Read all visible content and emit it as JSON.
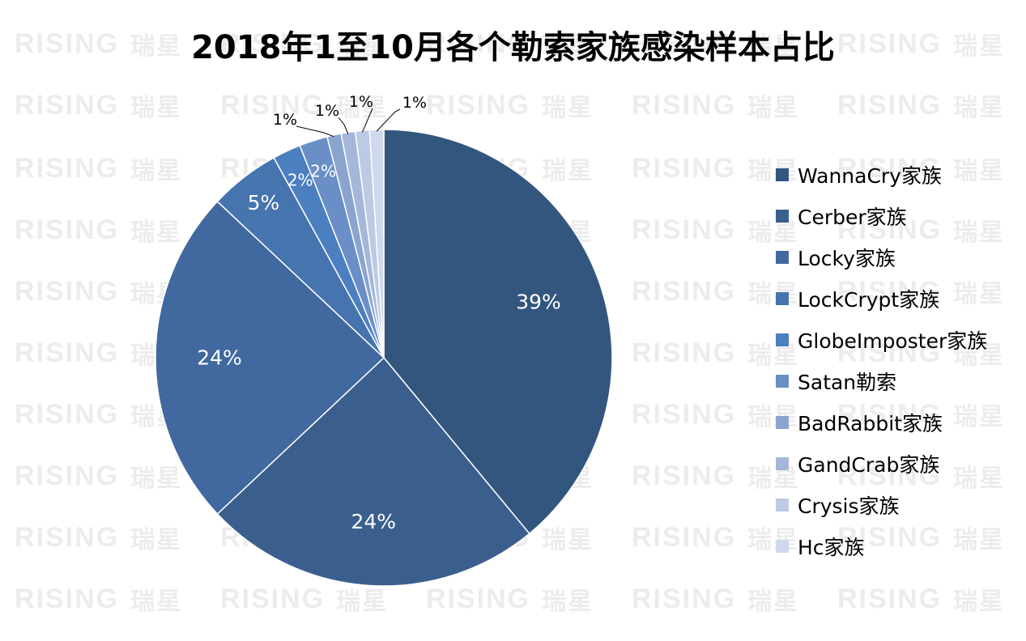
{
  "watermark": {
    "latin": "RISING",
    "chinese": "瑞星"
  },
  "chart_data": {
    "type": "pie",
    "title": "2018年1至10月各个勒索家族感染样本占比",
    "start_angle_deg": 90,
    "direction": "clockwise",
    "legend_position": "right",
    "slices": [
      {
        "name": "WannaCry家族",
        "value": 39,
        "label": "39%",
        "color": "#33567f"
      },
      {
        "name": "Cerber家族",
        "value": 24,
        "label": "24%",
        "color": "#3b5f8d"
      },
      {
        "name": "Locky家族",
        "value": 24,
        "label": "24%",
        "color": "#41699f"
      },
      {
        "name": "LockCrypt家族",
        "value": 5,
        "label": "5%",
        "color": "#4574ae"
      },
      {
        "name": "GlobeImposter家族",
        "value": 2,
        "label": "2%",
        "color": "#4b7fc0"
      },
      {
        "name": "Satan勒索",
        "value": 2,
        "label": "2%",
        "color": "#6a8fc6"
      },
      {
        "name": "BadRabbit家族",
        "value": 1,
        "label": "1%",
        "color": "#8aa4cf"
      },
      {
        "name": "GandCrab家族",
        "value": 1,
        "label": "1%",
        "color": "#a5b7d9"
      },
      {
        "name": "Crysis家族",
        "value": 1,
        "label": "1%",
        "color": "#bccae3"
      },
      {
        "name": "Hc家族",
        "value": 1,
        "label": "1%",
        "color": "#cfd8ec"
      }
    ]
  }
}
